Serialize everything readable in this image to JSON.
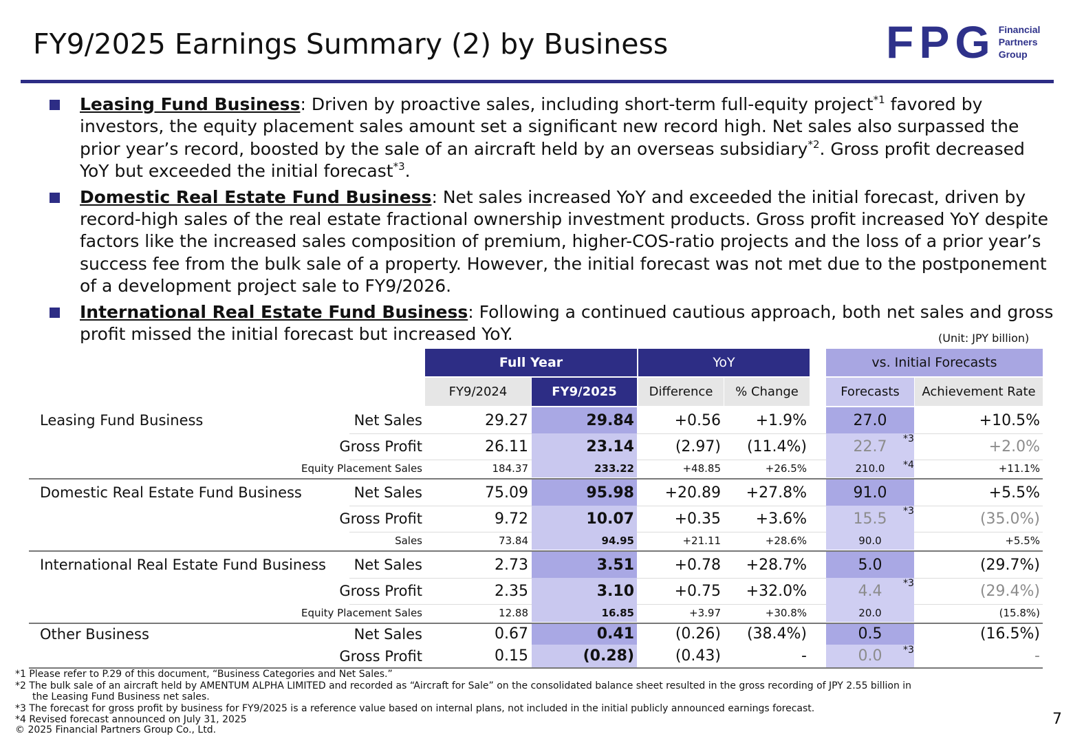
{
  "title": "FY9/2025 Earnings Summary (2) by Business",
  "logo": {
    "mark": "FPG",
    "line1": "Financial",
    "line2": "Partners",
    "line3": "Group",
    "color": "#2e318a"
  },
  "bullets": [
    {
      "head": "Leasing Fund Business",
      "parts": [
        ": Driven by proactive sales, including short-term full-equity project",
        "*1",
        " favored by investors, the equity placement sales amount set a significant new record high. Net sales also surpassed the prior year’s record, boosted by the sale of an aircraft held by an overseas subsidiary",
        "*2",
        ". Gross profit decreased YoY but exceeded the initial forecast",
        "*3",
        "."
      ]
    },
    {
      "head": "Domestic Real Estate Fund Business",
      "text": ": Net sales increased YoY and exceeded the initial forecast, driven by record-high sales of the real estate fractional ownership investment products. Gross profit increased YoY despite factors like the increased sales composition of premium, higher-COS-ratio projects and the loss of a prior year’s success fee from the bulk sale of a property. However, the initial forecast was not met due to the postponement of a development project sale to FY9/2026."
    },
    {
      "head": "International Real Estate Fund Business",
      "text": ": Following a continued cautious approach, both net sales and gross profit missed the initial forecast but increased YoY."
    }
  ],
  "unit": "(Unit: JPY billion)",
  "table": {
    "group_headers": {
      "full_year": "Full Year",
      "yoy": "YoY",
      "vs_forecast": "vs. Initial Forecasts"
    },
    "col_headers": {
      "fy2024": "FY9/2024",
      "fy2025": "FY9/2025",
      "diff": "Difference",
      "pct": "% Change",
      "forecast": "Forecasts",
      "achievement": "Achievement Rate"
    },
    "rows": [
      {
        "biz": "Leasing Fund Business",
        "metric": "Net Sales",
        "fy2024": "29.27",
        "fy2025": "29.84",
        "diff": "+0.56",
        "pct": "+1.9%",
        "forecast": "27.0",
        "fstar": "",
        "achievement": "+10.5%"
      },
      {
        "biz": "",
        "metric": "Gross Profit",
        "fy2024": "26.11",
        "fy2025": "23.14",
        "diff": "(2.97)",
        "pct": "(11.4%)",
        "forecast": "22.7",
        "fstar": "*3",
        "achievement": "+2.0%"
      },
      {
        "biz": "",
        "metric": "Equity Placement Sales",
        "fy2024": "184.37",
        "fy2025": "233.22",
        "diff": "+48.85",
        "pct": "+26.5%",
        "forecast": "210.0",
        "fstar": "*4",
        "achievement": "+11.1%"
      },
      {
        "biz": "Domestic Real Estate Fund Business",
        "metric": "Net Sales",
        "fy2024": "75.09",
        "fy2025": "95.98",
        "diff": "+20.89",
        "pct": "+27.8%",
        "forecast": "91.0",
        "fstar": "",
        "achievement": "+5.5%"
      },
      {
        "biz": "",
        "metric": "Gross Profit",
        "fy2024": "9.72",
        "fy2025": "10.07",
        "diff": "+0.35",
        "pct": "+3.6%",
        "forecast": "15.5",
        "fstar": "*3",
        "achievement": "(35.0%)"
      },
      {
        "biz": "",
        "metric": "Sales",
        "fy2024": "73.84",
        "fy2025": "94.95",
        "diff": "+21.11",
        "pct": "+28.6%",
        "forecast": "90.0",
        "fstar": "",
        "achievement": "+5.5%"
      },
      {
        "biz": "International Real Estate Fund Business",
        "metric": "Net Sales",
        "fy2024": "2.73",
        "fy2025": "3.51",
        "diff": "+0.78",
        "pct": "+28.7%",
        "forecast": "5.0",
        "fstar": "",
        "achievement": "(29.7%)"
      },
      {
        "biz": "",
        "metric": "Gross Profit",
        "fy2024": "2.35",
        "fy2025": "3.10",
        "diff": "+0.75",
        "pct": "+32.0%",
        "forecast": "4.4",
        "fstar": "*3",
        "achievement": "(29.4%)"
      },
      {
        "biz": "",
        "metric": "Equity Placement Sales",
        "fy2024": "12.88",
        "fy2025": "16.85",
        "diff": "+3.97",
        "pct": "+30.8%",
        "forecast": "20.0",
        "fstar": "",
        "achievement": "(15.8%)"
      },
      {
        "biz": "Other Business",
        "metric": "Net Sales",
        "fy2024": "0.67",
        "fy2025": "0.41",
        "diff": "(0.26)",
        "pct": "(38.4%)",
        "forecast": "0.5",
        "fstar": "",
        "achievement": "(16.5%)"
      },
      {
        "biz": "",
        "metric": "Gross Profit",
        "fy2024": "0.15",
        "fy2025": "(0.28)",
        "diff": "(0.43)",
        "pct": "-",
        "forecast": "0.0",
        "fstar": "*3",
        "achievement": "-"
      }
    ]
  },
  "notes": [
    "*1 Please refer to P.29 of this document, “Business Categories and Net Sales.”",
    "*2 The bulk sale of an aircraft held by AMENTUM ALPHA LIMITED and recorded as “Aircraft for Sale” on the consolidated balance sheet resulted in the gross recording of  JPY 2.55 billion in",
    "the Leasing Fund Business net sales.",
    "*3 The forecast for gross profit by business for FY9/2025 is a reference value based on internal plans, not included in the initial publicly announced earnings forecast.",
    "*4 Revised forecast announced on July 31, 2025"
  ],
  "copyright": "© 2025 Financial Partners Group Co., Ltd.",
  "page_number": "7",
  "colors": {
    "navy": "#2d2d85",
    "fy2025_bg": "#a9a8e4",
    "fy2025_light": "#c9c8ef",
    "header_grey": "#e6e6e6",
    "forecast_header": "#a8a6e2"
  }
}
